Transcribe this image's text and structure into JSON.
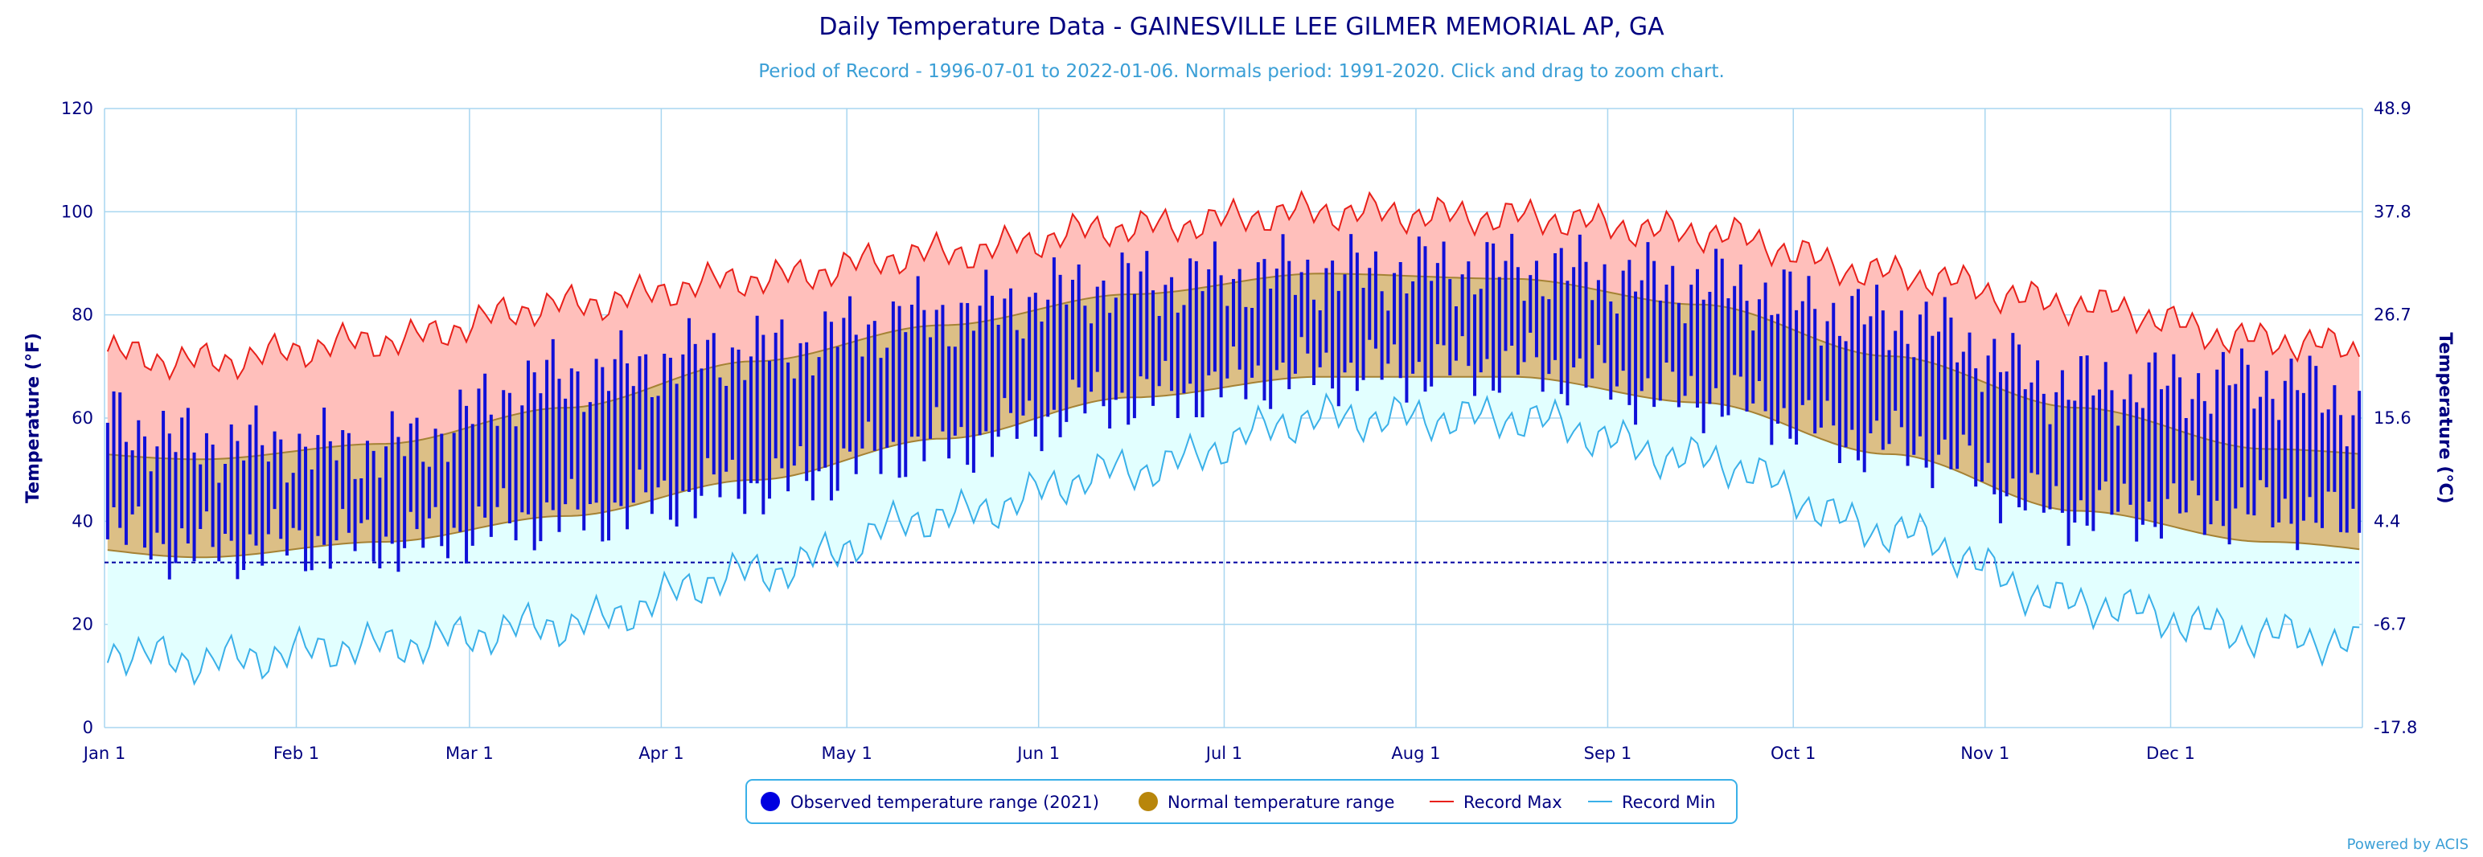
{
  "chart_data": {
    "type": "area",
    "title": "Daily Temperature Data - GAINESVILLE LEE GILMER MEMORIAL AP, GA",
    "subtitle": "Period of Record - 1996-07-01 to 2022-01-06. Normals period: 1991-2020. Click and drag to zoom chart.",
    "ylabel_left": "Temperature (°F)",
    "ylabel_right": "Temperature (°C)",
    "ylim": [
      0,
      120
    ],
    "left_ticks": [
      "0",
      "20",
      "40",
      "60",
      "80",
      "100",
      "120"
    ],
    "right_ticks": [
      "-17.8",
      "-6.7",
      "4.4",
      "15.6",
      "26.7",
      "37.8",
      "48.9"
    ],
    "x_ticks": [
      "Jan 1",
      "Feb 1",
      "Mar 1",
      "Apr 1",
      "May 1",
      "Jun 1",
      "Jul 1",
      "Aug 1",
      "Sep 1",
      "Oct 1",
      "Nov 1",
      "Dec 1"
    ],
    "freezing_line_f": 32,
    "grid": true,
    "legend_placement": "bottom-center",
    "legend": [
      {
        "label": "Observed temperature range (2021)",
        "color": "#0000e0",
        "marker": "circle"
      },
      {
        "label": "Normal temperature range",
        "color": "#b8860b",
        "marker": "circle"
      },
      {
        "label": "Record Max",
        "color": "#e8201a",
        "marker": "line"
      },
      {
        "label": "Record Min",
        "color": "#3ab0e8",
        "marker": "line"
      }
    ],
    "colors": {
      "observed": "#1010d8",
      "normal_fill": "#dcbf86",
      "normal_line": "#a58234",
      "record_max_line": "#e8201a",
      "record_max_fill": "#ffbfbb",
      "record_min_line": "#3ab0e8",
      "record_min_fill": "#e2ffff",
      "freezing": "#0000a0",
      "grid": "#a8d6f0"
    },
    "monthly": {
      "months": [
        "Jan",
        "Feb",
        "Mar",
        "Apr",
        "May",
        "Jun",
        "Jul",
        "Aug",
        "Sep",
        "Oct",
        "Nov",
        "Dec"
      ],
      "normal_high": [
        52,
        55,
        62,
        71,
        78,
        84,
        88,
        87,
        82,
        72,
        62,
        54
      ],
      "normal_low": [
        33,
        36,
        41,
        48,
        56,
        64,
        68,
        68,
        63,
        53,
        42,
        36
      ],
      "record_max": [
        71,
        75,
        82,
        87,
        92,
        97,
        100,
        99,
        96,
        88,
        82,
        75
      ],
      "record_min": [
        13,
        16,
        20,
        30,
        41,
        50,
        60,
        60,
        52,
        38,
        24,
        18
      ],
      "observed_high_2021": [
        55,
        54,
        68,
        73,
        80,
        86,
        88,
        89,
        86,
        79,
        66,
        67
      ],
      "observed_low_2021": [
        35,
        36,
        41,
        47,
        55,
        64,
        69,
        70,
        64,
        55,
        42,
        42
      ]
    }
  },
  "footer": {
    "credit": "Powered by ACIS"
  }
}
